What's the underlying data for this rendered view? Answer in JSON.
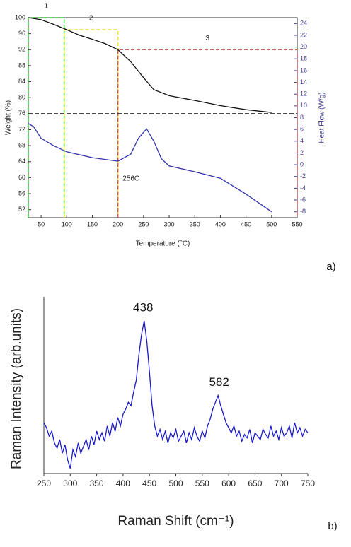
{
  "chart_data": [
    {
      "type": "line",
      "x_label": "Temperature (°C)",
      "y_label": "Weight (%)",
      "y2_label": "Heat Flow (W/g)",
      "panel_label": "a)",
      "xlim": [
        25,
        550
      ],
      "xticks": [
        50,
        100,
        150,
        200,
        250,
        300,
        350,
        400,
        450,
        500,
        550
      ],
      "ylim": [
        50,
        100
      ],
      "yticks": [
        52,
        56,
        60,
        64,
        68,
        72,
        76,
        80,
        84,
        88,
        92,
        96,
        100
      ],
      "y2lim": [
        -9,
        25
      ],
      "y2ticks": [
        -8,
        -6,
        -4,
        -2,
        0,
        2,
        4,
        6,
        8,
        10,
        12,
        14,
        16,
        18,
        20,
        22,
        24
      ],
      "series": [
        {
          "color": "#111111",
          "x": [
            25,
            50,
            75,
            100,
            125,
            150,
            175,
            200,
            225,
            250,
            270,
            300,
            350,
            400,
            450,
            500
          ],
          "values": [
            100,
            99.5,
            98.3,
            97,
            95.6,
            94.6,
            93.5,
            92,
            89,
            85,
            82,
            80.5,
            79.3,
            78,
            77,
            76.3
          ]
        },
        {
          "color": "#3333aa",
          "axis": "y2",
          "x": [
            25,
            35,
            50,
            75,
            100,
            150,
            200,
            225,
            240,
            256,
            270,
            285,
            300,
            350,
            400,
            450,
            500
          ],
          "values": [
            7,
            6.5,
            4.5,
            3.2,
            2.2,
            1.2,
            0.6,
            1.8,
            4.5,
            6.1,
            4,
            1,
            -0.2,
            -1.2,
            -2.3,
            -5,
            -8
          ]
        }
      ],
      "regions": [
        {
          "label": "1",
          "x": [
            25,
            95
          ],
          "y": 100,
          "color": "#33cc33"
        },
        {
          "label": "2",
          "x": [
            95,
            200
          ],
          "y": 97,
          "color": "#e6e633"
        },
        {
          "label": "3",
          "x": [
            200,
            550
          ],
          "y": 92,
          "color": "#cc5555"
        }
      ],
      "hline": {
        "value": 76,
        "color": "#333333"
      },
      "annotations": [
        {
          "text": "256C",
          "x": 256
        }
      ]
    },
    {
      "type": "line",
      "x_label": "Raman Shift (cm⁻¹)",
      "y_label": "Raman Intensity (arb.units)",
      "panel_label": "b)",
      "xlim": [
        250,
        750
      ],
      "xticks": [
        250,
        300,
        350,
        400,
        450,
        500,
        550,
        600,
        650,
        700,
        750
      ],
      "ylim": [
        0,
        100
      ],
      "series": [
        {
          "color": "#1a1acc",
          "x": [
            250,
            255,
            260,
            265,
            270,
            275,
            280,
            285,
            290,
            295,
            300,
            305,
            310,
            315,
            320,
            325,
            330,
            335,
            340,
            345,
            350,
            355,
            360,
            365,
            370,
            375,
            380,
            385,
            390,
            395,
            400,
            405,
            410,
            415,
            420,
            425,
            430,
            435,
            440,
            445,
            450,
            455,
            460,
            465,
            470,
            475,
            480,
            485,
            490,
            495,
            500,
            505,
            510,
            515,
            520,
            525,
            530,
            535,
            540,
            545,
            550,
            555,
            560,
            565,
            570,
            575,
            580,
            585,
            590,
            595,
            600,
            605,
            610,
            615,
            620,
            625,
            630,
            635,
            640,
            645,
            650,
            655,
            660,
            665,
            670,
            675,
            680,
            685,
            690,
            695,
            700,
            705,
            710,
            715,
            720,
            725,
            730,
            735,
            740,
            745,
            750
          ],
          "values": [
            30,
            27,
            22,
            25,
            18,
            15,
            20,
            12,
            17,
            8,
            3,
            14,
            10,
            18,
            12,
            16,
            20,
            14,
            22,
            17,
            25,
            20,
            24,
            19,
            28,
            22,
            30,
            25,
            33,
            28,
            35,
            38,
            42,
            40,
            48,
            55,
            70,
            82,
            90,
            78,
            60,
            40,
            28,
            22,
            26,
            20,
            25,
            18,
            24,
            21,
            26,
            19,
            22,
            25,
            18,
            24,
            20,
            27,
            22,
            19,
            25,
            21,
            28,
            32,
            38,
            42,
            46,
            40,
            35,
            30,
            27,
            24,
            28,
            22,
            25,
            19,
            23,
            21,
            26,
            18,
            24,
            22,
            20,
            26,
            23,
            21,
            28,
            22,
            25,
            20,
            27,
            22,
            24,
            28,
            21,
            30,
            24,
            27,
            22,
            26,
            24
          ]
        }
      ],
      "peaks": [
        438,
        582
      ]
    }
  ]
}
